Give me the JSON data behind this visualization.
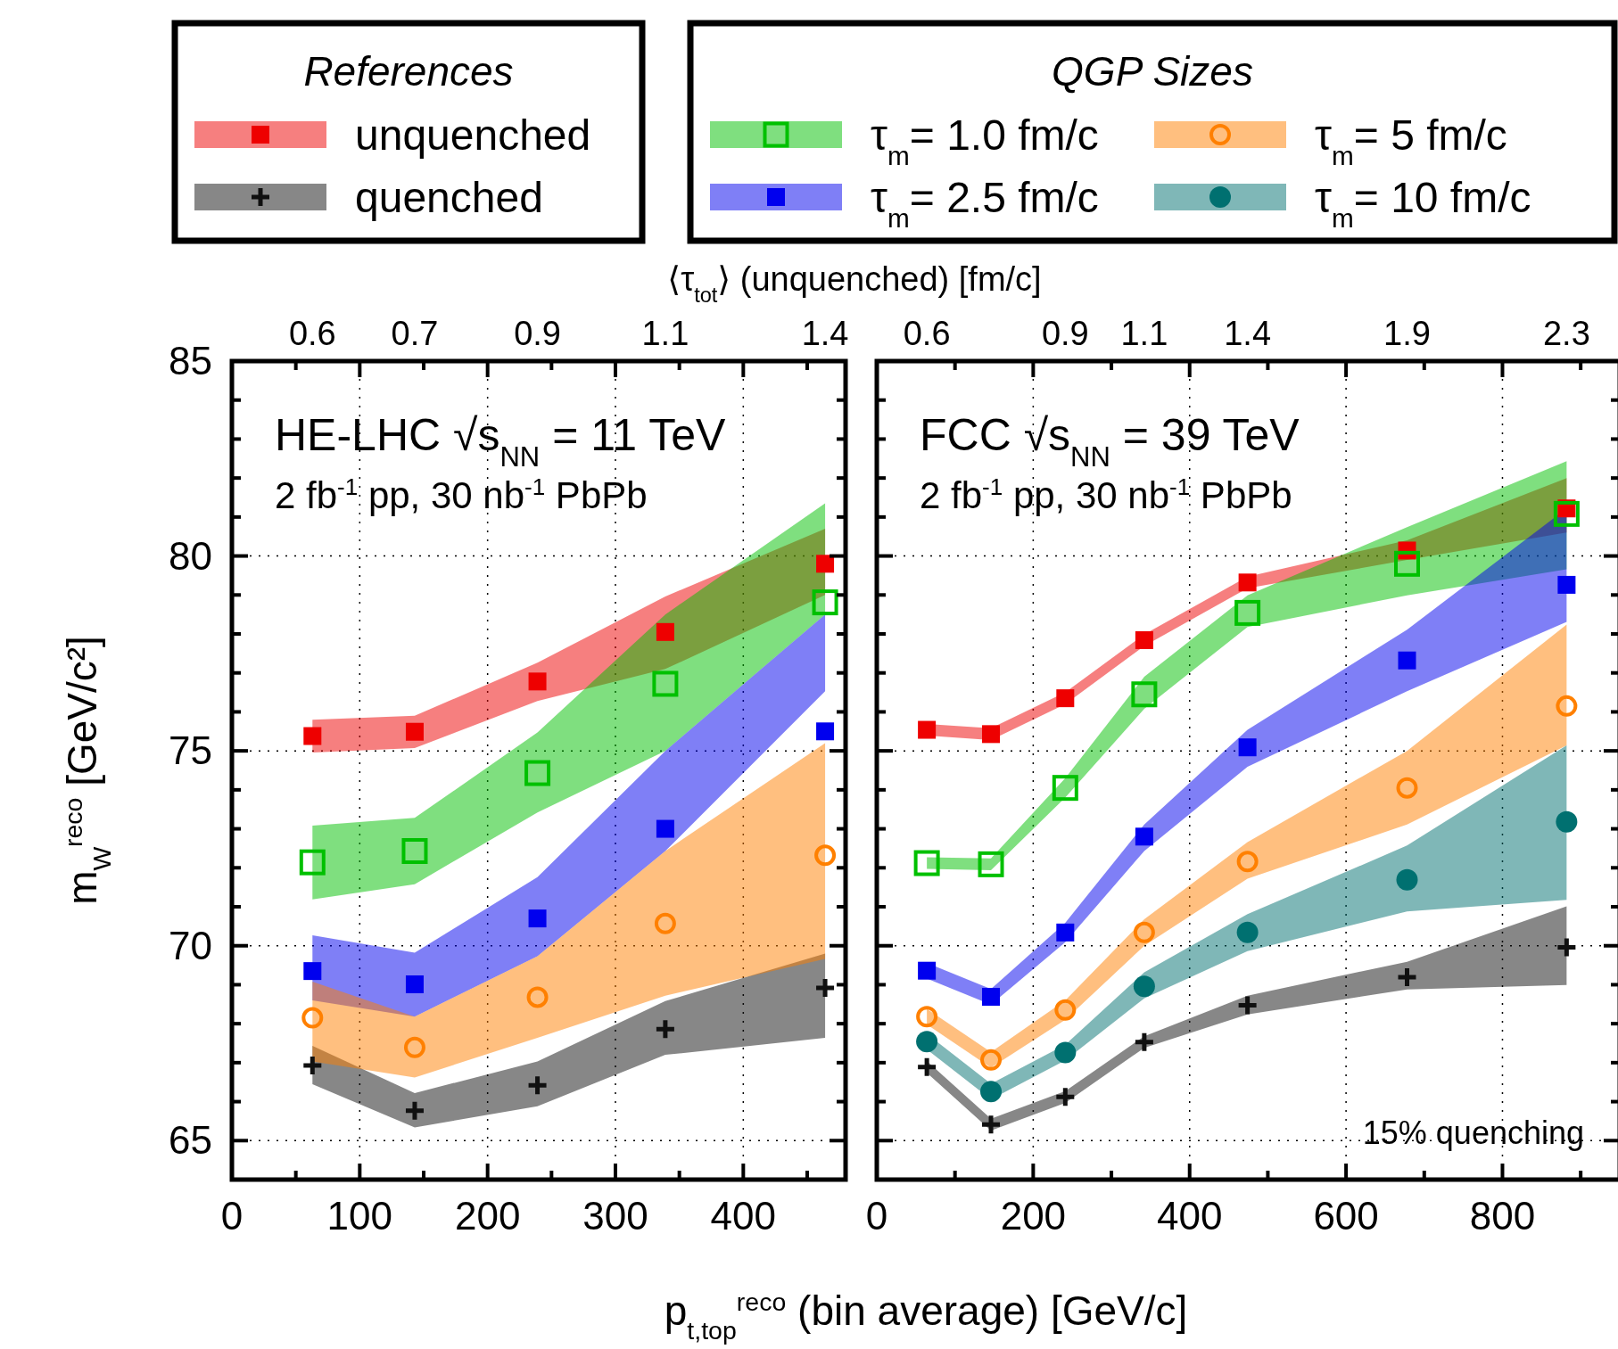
{
  "chart_data": [
    {
      "type": "scatter",
      "legend": "top",
      "legend_title": "References",
      "grid": true,
      "xlabel": "p$_{t,top}$$^{reco}$ (bin average) [GeV/c]",
      "ylabel": "m$_{W}$$^{reco}$ [GeV/c²]",
      "x2label": "⟨τ$_{tot}$⟩ (unquenched) [fm/c]",
      "annotations": [
        "HE-LHC √s$_{NN}$ = 11 TeV",
        "2 fb$^{-1}$ pp, 30 nb$^{-1}$ PbPb",
        "0.6",
        "0.7",
        "0.9",
        "1.1",
        "1.4"
      ],
      "x": [
        63,
        143,
        239,
        339,
        464
      ],
      "xlim": [
        0,
        480
      ],
      "xticks": [
        0,
        {
          "value": 50,
          "label": null
        },
        100,
        {
          "value": 150,
          "label": null
        },
        200,
        {
          "value": 250,
          "label": null
        },
        300,
        {
          "value": 350,
          "label": null
        },
        400,
        {
          "value": 450,
          "label": null
        }
      ],
      "ylim": [
        64,
        85
      ],
      "yticks": [
        65,
        {
          "value": 66,
          "label": null
        },
        {
          "value": 67,
          "label": null
        },
        {
          "value": 68,
          "label": null
        },
        {
          "value": 69,
          "label": null
        },
        70,
        {
          "value": 71,
          "label": null
        },
        {
          "value": 72,
          "label": null
        },
        {
          "value": 73,
          "label": null
        },
        {
          "value": 74,
          "label": null
        },
        75,
        {
          "value": 76,
          "label": null
        },
        {
          "value": 77,
          "label": null
        },
        {
          "value": 78,
          "label": null
        },
        {
          "value": 79,
          "label": null
        },
        80,
        {
          "value": 81,
          "label": null
        },
        {
          "value": 82,
          "label": null
        },
        {
          "value": 83,
          "label": null
        },
        {
          "value": 84,
          "label": null
        },
        85
      ],
      "series": [
        {
          "name": "unquenched",
          "color": "#ee0000",
          "marker": "square",
          "values": [
            75.38,
            75.49,
            76.78,
            78.05,
            79.8
          ],
          "lower": [
            74.96,
            75.07,
            76.28,
            77.1,
            79.0
          ],
          "upper": [
            75.8,
            75.9,
            77.26,
            78.96,
            80.7
          ]
        },
        {
          "name": "quenched",
          "color": "#101010",
          "marker": "cross",
          "values": [
            66.93,
            65.77,
            66.42,
            67.86,
            68.92
          ],
          "lower": [
            66.45,
            65.34,
            65.88,
            67.2,
            67.64
          ],
          "upper": [
            67.43,
            66.22,
            67.03,
            68.58,
            69.8
          ]
        },
        {
          "color": "#00c000",
          "marker": "square-open",
          "values": [
            72.14,
            72.43,
            74.43,
            76.72,
            78.81
          ],
          "lower": [
            71.19,
            71.58,
            73.42,
            75.0,
            78.5
          ],
          "upper": [
            73.08,
            73.28,
            75.47,
            78.5,
            81.35
          ]
        },
        {
          "color": "#0000ee",
          "marker": "square",
          "values": [
            69.35,
            69.01,
            70.7,
            73.0,
            75.5
          ],
          "lower": [
            68.6,
            68.18,
            69.73,
            72.43,
            76.53
          ],
          "upper": [
            70.27,
            69.82,
            71.76,
            75.0,
            78.5
          ]
        },
        {
          "color": "#ff8000",
          "marker": "circle-open",
          "values": [
            68.15,
            67.39,
            68.68,
            70.57,
            72.32
          ],
          "lower": [
            67.03,
            66.62,
            67.64,
            68.72,
            69.66
          ],
          "upper": [
            69.08,
            68.18,
            69.73,
            72.43,
            75.2
          ]
        }
      ]
    },
    {
      "type": "scatter",
      "legend": "top",
      "legend_title": "QGP Sizes",
      "grid": true,
      "tick_labels": "x",
      "annotations": [
        "FCC √s$_{NN}$ = 39 TeV",
        "2 fb$^{-1}$ pp, 30 nb$^{-1}$ PbPb",
        "15% quenching",
        "0.6",
        "0.9",
        "1.1",
        "1.4",
        "1.9",
        "2.3"
      ],
      "x": [
        64,
        146,
        241,
        342,
        474,
        678,
        882
      ],
      "xlim": [
        0,
        950
      ],
      "xticks": [
        0,
        {
          "value": 100,
          "label": null
        },
        200,
        {
          "value": 300,
          "label": null
        },
        400,
        {
          "value": 500,
          "label": null
        },
        600,
        {
          "value": 700,
          "label": null
        },
        800,
        {
          "value": 900,
          "label": null
        }
      ],
      "ylim": [
        64,
        85
      ],
      "yticks": [
        65,
        {
          "value": 66,
          "label": null
        },
        {
          "value": 67,
          "label": null
        },
        {
          "value": 68,
          "label": null
        },
        {
          "value": 69,
          "label": null
        },
        70,
        {
          "value": 71,
          "label": null
        },
        {
          "value": 72,
          "label": null
        },
        {
          "value": 73,
          "label": null
        },
        {
          "value": 74,
          "label": null
        },
        75,
        {
          "value": 76,
          "label": null
        },
        {
          "value": 77,
          "label": null
        },
        {
          "value": 78,
          "label": null
        },
        {
          "value": 79,
          "label": null
        },
        80,
        {
          "value": 81,
          "label": null
        },
        {
          "value": 82,
          "label": null
        },
        {
          "value": 83,
          "label": null
        },
        {
          "value": 84,
          "label": null
        },
        85
      ],
      "series": [
        {
          "color": "#ee0000",
          "marker": "square",
          "values": [
            75.54,
            75.43,
            76.35,
            77.84,
            79.32,
            80.14,
            81.22
          ],
          "lower": [
            75.39,
            75.28,
            76.2,
            77.69,
            79.17,
            79.9,
            80.6
          ],
          "upper": [
            75.69,
            75.58,
            76.5,
            77.99,
            79.47,
            80.4,
            82.0
          ]
        },
        {
          "color": "#101010",
          "marker": "cross",
          "values": [
            66.89,
            65.41,
            66.12,
            67.53,
            68.47,
            69.19,
            69.96
          ],
          "lower": [
            66.74,
            65.26,
            65.97,
            67.38,
            68.24,
            68.88,
            68.99
          ],
          "upper": [
            67.04,
            65.56,
            66.27,
            67.68,
            68.72,
            69.59,
            71.01
          ]
        },
        {
          "name": "τ$_{m}$= 1.0 fm/c",
          "color": "#00c000",
          "marker": "square-open",
          "values": [
            72.12,
            72.09,
            74.05,
            76.45,
            78.54,
            79.8,
            81.08
          ],
          "lower": [
            71.97,
            71.94,
            73.8,
            76.08,
            78.18,
            78.99,
            79.66
          ],
          "upper": [
            72.27,
            72.24,
            74.3,
            76.9,
            78.99,
            80.74,
            82.43
          ]
        },
        {
          "name": "τ$_{m}$= 2.5 fm/c",
          "color": "#0000ee",
          "marker": "square",
          "values": [
            69.36,
            68.69,
            70.34,
            72.8,
            75.09,
            77.32,
            79.26
          ],
          "lower": [
            69.16,
            68.49,
            70.09,
            72.43,
            74.59,
            76.53,
            78.31
          ],
          "upper": [
            69.56,
            68.89,
            70.59,
            73.11,
            75.54,
            78.11,
            81.22
          ]
        },
        {
          "name": "τ$_{m}$= 5 fm/c",
          "color": "#ff8000",
          "marker": "circle-open",
          "values": [
            68.18,
            67.07,
            68.35,
            70.34,
            72.16,
            74.05,
            76.15
          ],
          "lower": [
            67.98,
            66.87,
            68.1,
            70.0,
            71.72,
            73.11,
            75.14
          ],
          "upper": [
            68.38,
            67.27,
            68.6,
            70.68,
            72.66,
            75.0,
            78.24
          ]
        },
        {
          "name": "τ$_{m}$= 10 fm/c",
          "color": "#007070",
          "marker": "circle",
          "values": [
            67.54,
            66.26,
            67.26,
            68.96,
            70.34,
            71.69,
            73.18
          ],
          "lower": [
            67.34,
            66.06,
            67.06,
            68.65,
            69.86,
            70.88,
            71.18
          ],
          "upper": [
            67.74,
            66.46,
            67.46,
            69.32,
            70.81,
            72.57,
            75.14
          ]
        }
      ]
    }
  ]
}
